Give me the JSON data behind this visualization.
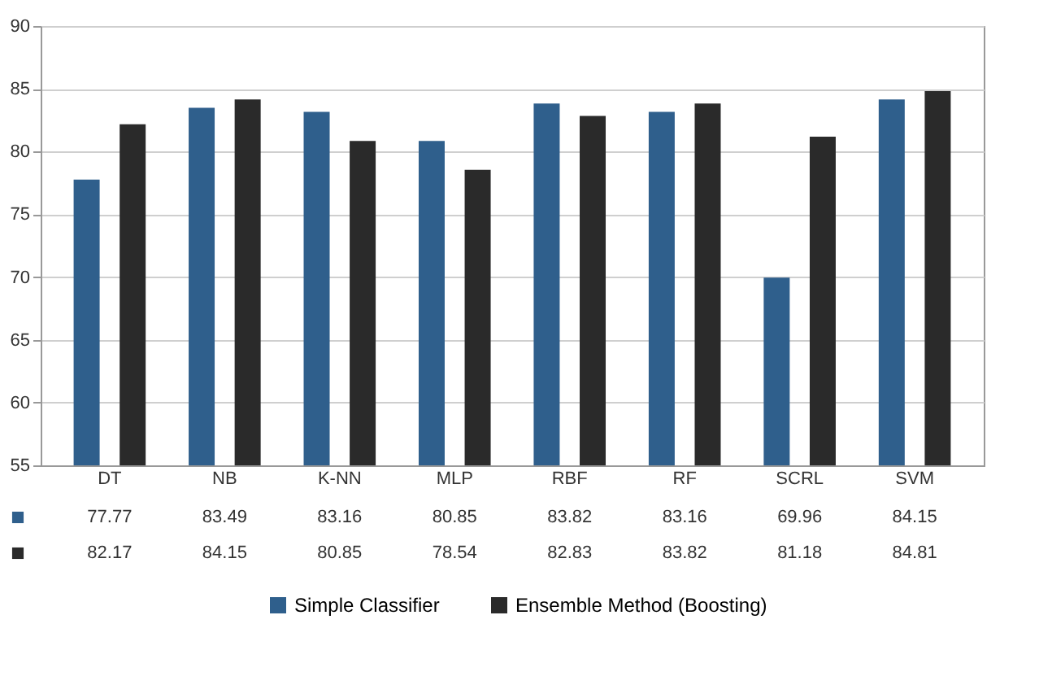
{
  "chart_data": {
    "type": "bar",
    "categories": [
      "DT",
      "NB",
      "K-NN",
      "MLP",
      "RBF",
      "RF",
      "SCRL",
      "SVM"
    ],
    "series": [
      {
        "name": "Simple Classifier",
        "color": "#2f5f8c",
        "values": [
          77.77,
          83.49,
          83.16,
          80.85,
          83.82,
          83.16,
          69.96,
          84.15
        ]
      },
      {
        "name": "Ensemble Method (Boosting)",
        "color": "#2a2a2a",
        "values": [
          82.17,
          84.15,
          80.85,
          78.54,
          82.83,
          83.82,
          81.18,
          84.81
        ]
      }
    ],
    "ylim": [
      55,
      90
    ],
    "yticks": [
      55,
      60,
      65,
      70,
      75,
      80,
      85,
      90
    ],
    "grid": "y",
    "legend": "bottom",
    "data_labels": true
  }
}
